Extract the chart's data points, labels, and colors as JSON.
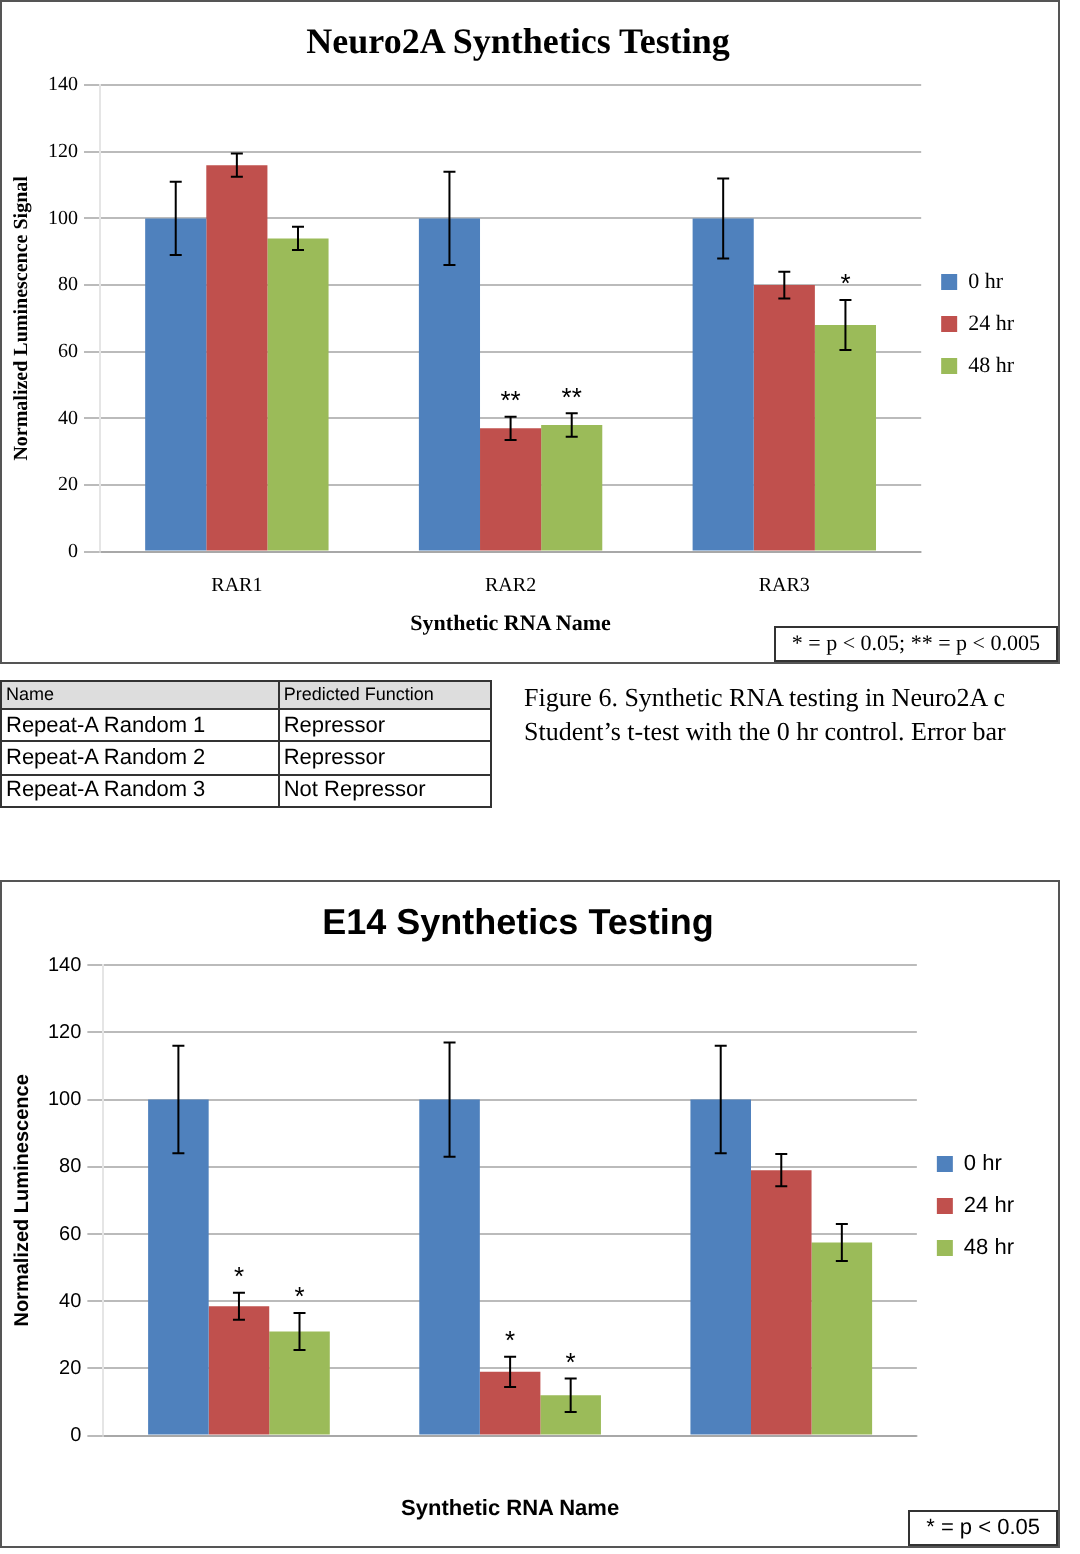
{
  "chart_data": [
    {
      "type": "bar",
      "title": "Neuro2A Synthetics Testing",
      "xlabel": "Synthetic RNA Name",
      "ylabel": "Normalized Luminescence Signal",
      "categories": [
        "RAR1",
        "RAR2",
        "RAR3"
      ],
      "ylim": [
        0,
        140
      ],
      "yticks": [
        0,
        20,
        40,
        60,
        80,
        100,
        120,
        140
      ],
      "grid": "y",
      "legend": "right",
      "series": [
        {
          "name": "0 hr",
          "color": "#4f81bd",
          "values": [
            100,
            100,
            100
          ],
          "errors": [
            11,
            14,
            12
          ]
        },
        {
          "name": "24 hr",
          "color": "#c0504d",
          "values": [
            116,
            37,
            80
          ],
          "errors": [
            3.5,
            3.5,
            4
          ],
          "value_labels": [
            null,
            "**",
            null
          ]
        },
        {
          "name": "48 hr",
          "color": "#9bbb59",
          "values": [
            94,
            38,
            68
          ],
          "errors": [
            3.5,
            3.5,
            7.5
          ],
          "value_labels": [
            null,
            "**",
            "*"
          ]
        }
      ],
      "annotations": [
        "* = p < 0.05; ** = p < 0.005"
      ]
    },
    {
      "type": "other",
      "annotations": [
        "Name",
        "Predicted Function",
        "Repeat-A Random 1",
        "Repressor",
        "Repeat-A Random 2",
        "Repressor",
        "Repeat-A Random 3",
        "Not Repressor",
        "Figure 6. Synthetic RNA testing in Neuro2A c",
        "Student’s t-test with the 0 hr control. Error bar"
      ]
    },
    {
      "type": "bar",
      "title": "E14 Synthetics Testing",
      "xlabel": "Synthetic RNA Name",
      "ylabel": "Normalized Luminescence",
      "categories": [
        null,
        null,
        null
      ],
      "ylim": [
        0,
        140
      ],
      "yticks": [
        0,
        20,
        40,
        60,
        80,
        100,
        120,
        140
      ],
      "grid": "y",
      "legend": "right",
      "series": [
        {
          "name": "0 hr",
          "color": "#4f81bd",
          "values": [
            100,
            100,
            100
          ],
          "errors": [
            16,
            17,
            16
          ]
        },
        {
          "name": "24 hr",
          "color": "#c0504d",
          "values": [
            38.5,
            19,
            79
          ],
          "errors": [
            4,
            4.5,
            4.8
          ],
          "value_labels": [
            "*",
            "*",
            null
          ]
        },
        {
          "name": "48 hr",
          "color": "#9bbb59",
          "values": [
            31,
            12,
            57.5
          ],
          "errors": [
            5.5,
            5,
            5.5
          ],
          "value_labels": [
            "*",
            "*",
            null
          ]
        }
      ],
      "annotations": [
        "* = p < 0.05"
      ]
    }
  ]
}
